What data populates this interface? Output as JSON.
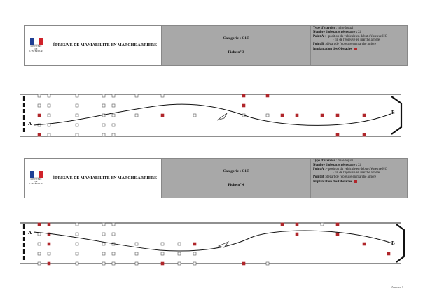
{
  "logo": {
    "line1": "MINISTÈRE",
    "line2": "DE",
    "line3": "L'INTÉRIEUR",
    "colors": [
      "#1f3f94",
      "#ffffff",
      "#d0222a"
    ]
  },
  "sheets": [
    {
      "title": "ÉPREUVE DE MANIABILITE EN MARCHE ARRIERE",
      "category": "Catégorie : C1E",
      "sheet": "Fiche n° 3",
      "exercise_label": "Type d'exercice",
      "exercise_value": " : mise à quai",
      "obstacles_label": "Nombre d'obstacle nécessaire : 21",
      "point_a_label": "Point A",
      "point_a_value": " : - position du véhicule en début d'épreuve HC",
      "end_text": "- fin de l'épreuve en marche arrière",
      "point_b_label": "Point B",
      "point_b_value": " : départ de l'épreuve en marche arrière",
      "legend_label": "Implantation des Obstacles"
    },
    {
      "title": "ÉPREUVE DE MANIABILITE EN MARCHE ARRIERE",
      "category": "Catégorie : C1E",
      "sheet": "Fiche n° 4",
      "exercise_label": "Type d'exercice",
      "exercise_value": " : mise à quai",
      "obstacles_label": "Nombre d'obstacle nécessaire : 21",
      "point_a_label": "Point A",
      "point_a_value": " : - position du véhicule en début d'épreuve HC",
      "end_text": "- fin de l'épreuve en marche arrière",
      "point_b_label": "Point B",
      "point_b_value": " : départ de l'épreuve en marche arrière",
      "legend_label": "Implantation des Obstacles"
    }
  ],
  "labels": {
    "a": "A",
    "b": "B"
  },
  "annex": "Annexe 3",
  "colors": {
    "obstacle": "#b0262b",
    "panel": "#a8a8a8"
  }
}
